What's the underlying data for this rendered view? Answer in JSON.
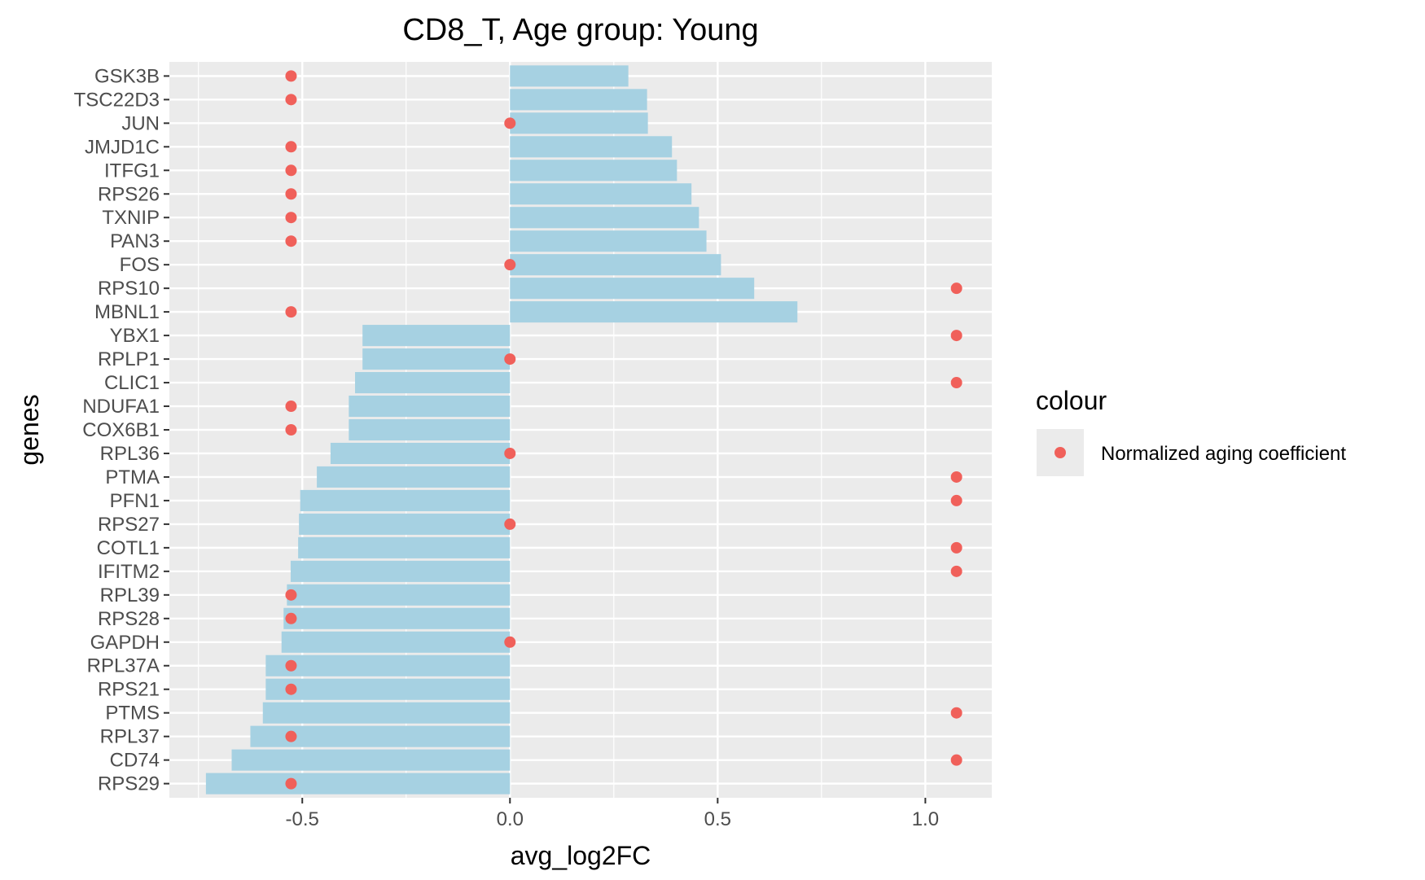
{
  "chart_data": {
    "type": "bar",
    "title": "CD8_T, Age group: Young",
    "xlabel": "avg_log2FC",
    "ylabel": "genes",
    "xlim": [
      -0.82,
      1.16
    ],
    "xticks": [
      -0.5,
      0.0,
      0.5,
      1.0
    ],
    "xtick_labels": [
      "-0.5",
      "0.0",
      "0.5",
      "1.0"
    ],
    "grid": true,
    "orientation": "horizontal",
    "categories": [
      "GSK3B",
      "TSC22D3",
      "JUN",
      "JMJD1C",
      "ITFG1",
      "RPS26",
      "TXNIP",
      "PAN3",
      "FOS",
      "RPS10",
      "MBNL1",
      "YBX1",
      "RPLP1",
      "CLIC1",
      "NDUFA1",
      "COX6B1",
      "RPL36",
      "PTMA",
      "PFN1",
      "RPS27",
      "COTL1",
      "IFITM2",
      "RPL39",
      "RPS28",
      "GAPDH",
      "RPL37A",
      "RPS21",
      "PTMS",
      "RPL37",
      "CD74",
      "RPS29"
    ],
    "series": [
      {
        "kind": "bar",
        "color": "#a6d1e2",
        "values": [
          0.285,
          0.33,
          0.332,
          0.39,
          0.402,
          0.437,
          0.455,
          0.473,
          0.508,
          0.588,
          0.692,
          -0.355,
          -0.355,
          -0.373,
          -0.388,
          -0.388,
          -0.432,
          -0.465,
          -0.505,
          -0.508,
          -0.51,
          -0.528,
          -0.537,
          -0.545,
          -0.55,
          -0.588,
          -0.588,
          -0.595,
          -0.625,
          -0.67,
          -0.732
        ]
      },
      {
        "kind": "point",
        "name": "Normalized aging coefficient",
        "color": "#f0605a",
        "values": [
          -0.527,
          -0.527,
          0.0,
          -0.527,
          -0.527,
          -0.527,
          -0.527,
          -0.527,
          0.0,
          1.075,
          -0.527,
          1.075,
          0.0,
          1.075,
          -0.527,
          -0.527,
          0.0,
          1.075,
          1.075,
          0.0,
          1.075,
          1.075,
          -0.527,
          -0.527,
          0.0,
          -0.527,
          -0.527,
          1.075,
          -0.527,
          1.075,
          -0.527
        ]
      }
    ],
    "legend": {
      "title": "colour",
      "position": "right",
      "entries": [
        "Normalized aging coefficient"
      ]
    },
    "colors": {
      "panel": "#ebebeb",
      "grid": "#ffffff",
      "bar": "#a6d1e2",
      "point": "#f0605a"
    }
  }
}
